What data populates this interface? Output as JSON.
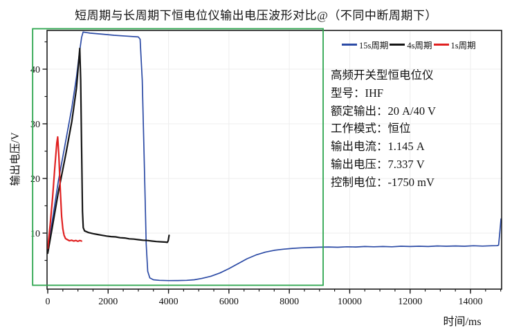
{
  "title": "短周期与长周期下恒电位仪输出电压波形对比@（不同中断周期下）",
  "axes": {
    "x_label": "时间/ms",
    "y_label": "输出电压/V",
    "x_ticks": [
      0,
      2000,
      4000,
      6000,
      8000,
      10000,
      12000,
      14000
    ],
    "x_minor_step": 500,
    "x_minor_max": 15000,
    "y_ticks": [
      10,
      20,
      30,
      40
    ],
    "y_minor_ticks": [
      5,
      15,
      25,
      35,
      45
    ],
    "x_range": [
      0,
      15050
    ],
    "y_range": [
      -0.3,
      47.1
    ]
  },
  "legend": {
    "items": [
      {
        "label": "15s周期",
        "color": "#2b4aa5"
      },
      {
        "label": "4s周期",
        "color": "#141414"
      },
      {
        "label": "1s周期",
        "color": "#e02020"
      }
    ]
  },
  "info_panel": {
    "lines": [
      "高频开关型恒电位仪",
      "型号：IHF",
      "额定输出：20 A/40 V",
      "工作模式：恒位",
      "输出电流：1.145 A",
      "输出电压：7.337 V",
      "控制电位：-1750 mV"
    ]
  },
  "annotation_box": {
    "color": "#2ca64e",
    "t_range_ms": [
      -500,
      9120
    ],
    "v_range": [
      0.45,
      47.4
    ]
  },
  "chart_data": {
    "type": "line",
    "title": "短周期与长周期下恒电位仪输出电压波形对比@（不同中断周期下）",
    "xlabel": "时间/ms",
    "ylabel": "输出电压/V",
    "xlim": [
      0,
      15050
    ],
    "ylim": [
      -0.3,
      47.1
    ],
    "grid": true,
    "legend_position": "top-right-inside",
    "series": [
      {
        "name": "15s周期",
        "color": "#2b4aa5",
        "stroke_width": 1.7,
        "points": [
          [
            0,
            6.8
          ],
          [
            150,
            12.2
          ],
          [
            350,
            19.5
          ],
          [
            600,
            27.0
          ],
          [
            800,
            33.0
          ],
          [
            950,
            38.5
          ],
          [
            1050,
            43.0
          ],
          [
            1120,
            45.8
          ],
          [
            1170,
            46.8
          ],
          [
            1400,
            46.6
          ],
          [
            1800,
            46.4
          ],
          [
            2200,
            46.2
          ],
          [
            2600,
            46.05
          ],
          [
            3000,
            45.9
          ],
          [
            3060,
            45.5
          ],
          [
            3130,
            38.0
          ],
          [
            3200,
            22.0
          ],
          [
            3260,
            8.0
          ],
          [
            3310,
            3.0
          ],
          [
            3380,
            1.8
          ],
          [
            3500,
            1.45
          ],
          [
            3700,
            1.35
          ],
          [
            4000,
            1.3
          ],
          [
            4300,
            1.32
          ],
          [
            4600,
            1.35
          ],
          [
            4850,
            1.45
          ],
          [
            5100,
            1.7
          ],
          [
            5400,
            2.1
          ],
          [
            5700,
            2.7
          ],
          [
            6000,
            3.5
          ],
          [
            6300,
            4.4
          ],
          [
            6600,
            5.3
          ],
          [
            6900,
            6.0
          ],
          [
            7200,
            6.5
          ],
          [
            7500,
            6.85
          ],
          [
            7800,
            7.05
          ],
          [
            8100,
            7.2
          ],
          [
            8400,
            7.3
          ],
          [
            8700,
            7.35
          ],
          [
            9000,
            7.42
          ],
          [
            9300,
            7.45
          ],
          [
            9600,
            7.4
          ],
          [
            9900,
            7.5
          ],
          [
            10200,
            7.45
          ],
          [
            10500,
            7.55
          ],
          [
            10800,
            7.5
          ],
          [
            11100,
            7.55
          ],
          [
            11400,
            7.5
          ],
          [
            11700,
            7.6
          ],
          [
            12000,
            7.55
          ],
          [
            12300,
            7.6
          ],
          [
            12600,
            7.55
          ],
          [
            12900,
            7.65
          ],
          [
            13200,
            7.6
          ],
          [
            13500,
            7.65
          ],
          [
            13800,
            7.6
          ],
          [
            14100,
            7.68
          ],
          [
            14400,
            7.62
          ],
          [
            14700,
            7.68
          ],
          [
            14880,
            7.7
          ],
          [
            14930,
            7.8
          ],
          [
            14970,
            10.0
          ],
          [
            15010,
            12.6
          ]
        ]
      },
      {
        "name": "4s周期",
        "color": "#141414",
        "stroke_width": 2.2,
        "points": [
          [
            0,
            6.3
          ],
          [
            150,
            11.0
          ],
          [
            350,
            17.5
          ],
          [
            600,
            24.5
          ],
          [
            800,
            30.5
          ],
          [
            950,
            36.5
          ],
          [
            1020,
            41.0
          ],
          [
            1060,
            43.8
          ],
          [
            1090,
            38.0
          ],
          [
            1120,
            26.0
          ],
          [
            1150,
            14.0
          ],
          [
            1175,
            11.0
          ],
          [
            1220,
            10.4
          ],
          [
            1350,
            10.1
          ],
          [
            1500,
            9.9
          ],
          [
            1650,
            9.75
          ],
          [
            1800,
            9.6
          ],
          [
            1950,
            9.45
          ],
          [
            2100,
            9.35
          ],
          [
            2250,
            9.3
          ],
          [
            2400,
            9.15
          ],
          [
            2550,
            9.1
          ],
          [
            2700,
            8.95
          ],
          [
            2850,
            8.9
          ],
          [
            3000,
            8.8
          ],
          [
            3150,
            8.7
          ],
          [
            3300,
            8.65
          ],
          [
            3450,
            8.55
          ],
          [
            3600,
            8.45
          ],
          [
            3750,
            8.4
          ],
          [
            3900,
            8.35
          ],
          [
            3960,
            8.3
          ],
          [
            3990,
            8.6
          ],
          [
            4020,
            9.6
          ]
        ]
      },
      {
        "name": "1s周期",
        "color": "#e02020",
        "stroke_width": 2.2,
        "points": [
          [
            0,
            7.2
          ],
          [
            80,
            11.5
          ],
          [
            160,
            16.5
          ],
          [
            240,
            22.5
          ],
          [
            300,
            26.5
          ],
          [
            330,
            27.6
          ],
          [
            370,
            24.0
          ],
          [
            420,
            17.5
          ],
          [
            460,
            13.0
          ],
          [
            500,
            10.8
          ],
          [
            540,
            9.6
          ],
          [
            590,
            9.0
          ],
          [
            650,
            8.8
          ],
          [
            720,
            8.6
          ],
          [
            790,
            8.7
          ],
          [
            860,
            8.55
          ],
          [
            930,
            8.65
          ],
          [
            1000,
            8.5
          ],
          [
            1060,
            8.65
          ],
          [
            1120,
            8.55
          ]
        ]
      }
    ]
  }
}
